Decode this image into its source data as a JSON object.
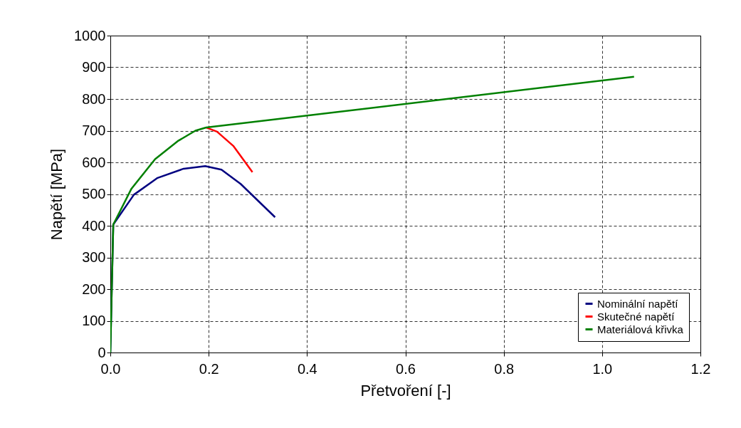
{
  "chart_data": {
    "type": "line",
    "xlabel": "Přetvoření [-]",
    "ylabel": "Napětí [MPa]",
    "xlim": [
      0,
      1.2
    ],
    "xticks": [
      {
        "value": 0,
        "label": "0.0"
      },
      0.2,
      0.4,
      0.6,
      0.8,
      {
        "value": 1,
        "label": "1.0"
      },
      1.2
    ],
    "ylim": [
      0,
      1000
    ],
    "yticks": [
      0,
      100,
      200,
      300,
      400,
      500,
      600,
      700,
      800,
      900,
      1000
    ],
    "grid": true,
    "legend": "bottom right",
    "line_style": "solid",
    "series": [
      {
        "name": "Nominální napětí",
        "color": "#000080",
        "x": [
          0,
          0.006,
          0.048,
          0.096,
          0.149,
          0.193,
          0.226,
          0.265,
          0.335
        ],
        "values": [
          0,
          404,
          498,
          551,
          580,
          588,
          577,
          532,
          427
        ]
      },
      {
        "name": "Skutečné napětí",
        "color": "#ff0000",
        "x": [
          0.195,
          0.217,
          0.25,
          0.289
        ],
        "values": [
          710,
          697,
          652,
          569
        ]
      },
      {
        "name": "Materiálová křivka",
        "color": "#008000",
        "x": [
          0,
          0.006,
          0.043,
          0.091,
          0.137,
          0.173,
          0.195,
          1.065
        ],
        "values": [
          0,
          404,
          517,
          610,
          667,
          700,
          710,
          870
        ]
      }
    ]
  }
}
